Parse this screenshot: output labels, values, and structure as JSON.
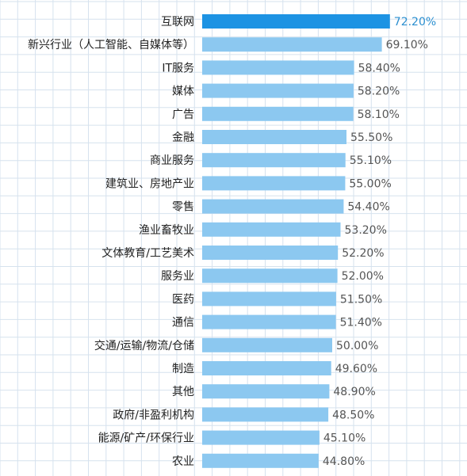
{
  "colors": {
    "background": "#ffffff",
    "grid": "#d6e2ee",
    "highlight_bar": "#1d93e3",
    "bar": "#8cc8f0",
    "highlight_label": "#2b8fd0",
    "value_label": "#555555",
    "category_label": "#222222"
  },
  "chart_data": {
    "type": "bar",
    "orientation": "horizontal",
    "title": "",
    "xlabel": "",
    "ylabel": "",
    "grid": true,
    "value_suffix": "%",
    "xlim": [
      0,
      100
    ],
    "highlight_index": 0,
    "categories": [
      "互联网",
      "新兴行业（人工智能、自媒体等）",
      "IT服务",
      "媒体",
      "广告",
      "金融",
      "商业服务",
      "建筑业、房地产业",
      "零售",
      "渔业畜牧业",
      "文体教育/工艺美术",
      "服务业",
      "医药",
      "通信",
      "交通/运输/物流/仓储",
      "制造",
      "其他",
      "政府/非盈利机构",
      "能源/矿产/环保行业",
      "农业"
    ],
    "values": [
      72.2,
      69.1,
      58.4,
      58.2,
      58.1,
      55.5,
      55.1,
      55.0,
      54.4,
      53.2,
      52.2,
      52.0,
      51.5,
      51.4,
      50.0,
      49.6,
      48.9,
      48.5,
      45.1,
      44.8
    ],
    "labels": [
      "72.20%",
      "69.10%",
      "58.40%",
      "58.20%",
      "58.10%",
      "55.50%",
      "55.10%",
      "55.00%",
      "54.40%",
      "53.20%",
      "52.20%",
      "52.00%",
      "51.50%",
      "51.40%",
      "50.00%",
      "49.60%",
      "48.90%",
      "48.50%",
      "45.10%",
      "44.80%"
    ]
  }
}
